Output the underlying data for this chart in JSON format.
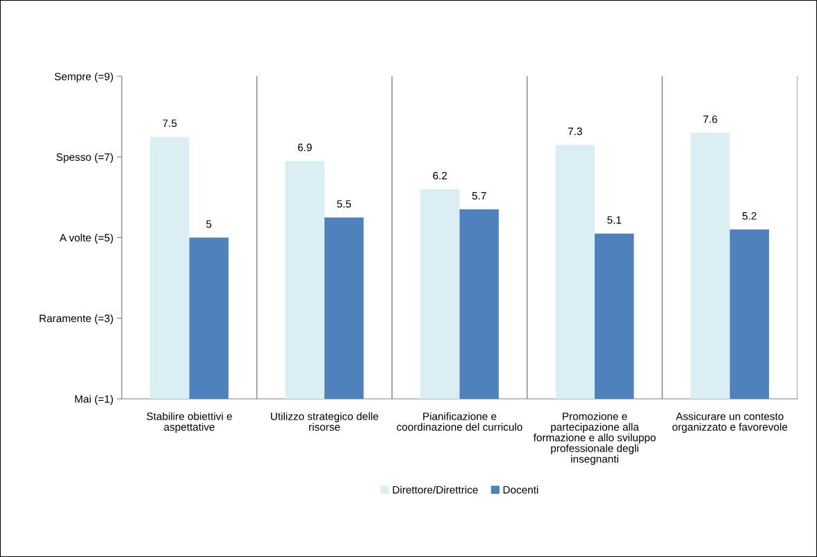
{
  "chart_data": {
    "type": "bar",
    "categories": [
      "Stabilire obiettivi e aspettative",
      "Utilizzo strategico delle risorse",
      "Pianificazione e coordinazione del curriculo",
      "Promozione e partecipazione alla formazione e allo sviluppo professionale degli insegnanti",
      "Assicurare un contesto organizzato e favorevole"
    ],
    "series": [
      {
        "name": "Direttore/Direttrice",
        "color": "#dbeef4",
        "values": [
          7.5,
          6.9,
          6.2,
          7.3,
          7.6
        ]
      },
      {
        "name": "Docenti",
        "color": "#4f81bd",
        "values": [
          5,
          5.5,
          5.7,
          5.1,
          5.2
        ]
      }
    ],
    "ylim": [
      1,
      9
    ],
    "yticks": [
      {
        "value": 1,
        "label": "Mai (=1)"
      },
      {
        "value": 3,
        "label": "Raramente (=3)"
      },
      {
        "value": 5,
        "label": "A volte (=5)"
      },
      {
        "value": 7,
        "label": "Spesso (=7)"
      },
      {
        "value": 9,
        "label": "Sempre (=9)"
      }
    ],
    "grid": "x",
    "legend": "bottom",
    "data_labels": true
  }
}
